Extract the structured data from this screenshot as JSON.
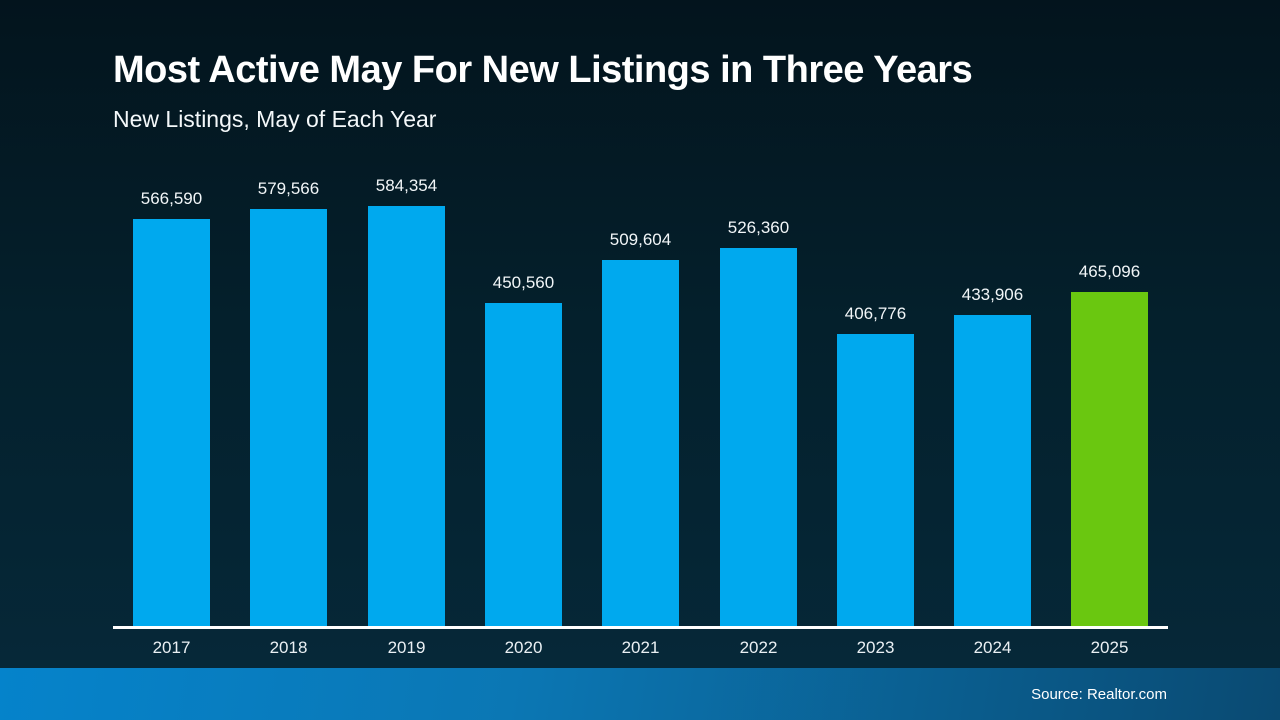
{
  "header": {
    "title": "Most Active May For New Listings in Three Years",
    "subtitle": "New Listings, May of Each Year"
  },
  "footer": {
    "source": "Source: Realtor.com"
  },
  "chart_data": {
    "type": "bar",
    "title": "Most Active May For New Listings in Three Years",
    "subtitle": "New Listings, May of Each Year",
    "categories": [
      "2017",
      "2018",
      "2019",
      "2020",
      "2021",
      "2022",
      "2023",
      "2024",
      "2025"
    ],
    "values": [
      566590,
      579566,
      584354,
      450560,
      509604,
      526360,
      406776,
      433906,
      465096
    ],
    "value_labels": [
      "566,590",
      "579,566",
      "584,354",
      "450,560",
      "509,604",
      "526,360",
      "406,776",
      "433,906",
      "465,096"
    ],
    "bar_colors": [
      "#00a9ee",
      "#00a9ee",
      "#00a9ee",
      "#00a9ee",
      "#00a9ee",
      "#00a9ee",
      "#00a9ee",
      "#00a9ee",
      "#6ac710"
    ],
    "default_color": "#00a9ee",
    "highlight_color": "#6ac710",
    "highlight_category": "2025",
    "xlabel": "",
    "ylabel": "",
    "ylim": [
      0,
      584354
    ],
    "grid": false,
    "legend": false,
    "y_axis_visible": false,
    "baseline_color": "#ffffff",
    "source": "Source: Realtor.com"
  },
  "colors": {
    "background_top": "#03141d",
    "background_bottom": "#06293a",
    "bar_blue": "#00a9ee",
    "bar_green": "#6ac710",
    "footer_blue_left": "#0583cb",
    "footer_blue_right": "#0a4a72",
    "axis_line": "#ffffff",
    "text": "#ffffff"
  }
}
